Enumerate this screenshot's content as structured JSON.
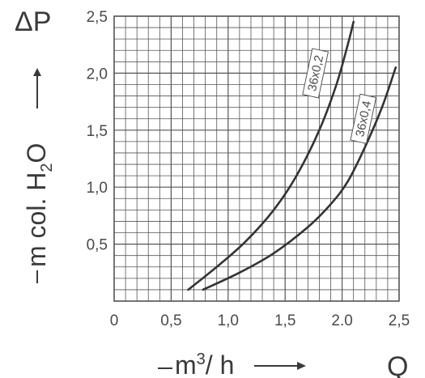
{
  "chart_data": {
    "type": "line",
    "y_symbol": "ΔP",
    "ylabel": {
      "prefix": "m col. H",
      "sub": "2",
      "suffix": "O"
    },
    "x_symbol": "Q",
    "xlabel": {
      "prefix": "m",
      "sup": "3",
      "suffix": "/ h"
    },
    "xlim": [
      0,
      2.5
    ],
    "ylim": [
      0,
      2.5
    ],
    "x_ticks": [
      "0",
      "0,5",
      "1,0",
      "1,5",
      "2.0",
      "2,5"
    ],
    "y_ticks": [
      "0,5",
      "1,0",
      "1,5",
      "2,0",
      "2,5"
    ],
    "grid": true,
    "series": [
      {
        "name": "36x0,2",
        "x": [
          0.65,
          0.9,
          1.15,
          1.4,
          1.6,
          1.8,
          1.95,
          2.05,
          2.1
        ],
        "y": [
          0.1,
          0.3,
          0.52,
          0.8,
          1.1,
          1.5,
          1.9,
          2.25,
          2.45
        ]
      },
      {
        "name": "36x0,4",
        "x": [
          0.78,
          1.1,
          1.4,
          1.7,
          1.9,
          2.05,
          2.2,
          2.35,
          2.47
        ],
        "y": [
          0.1,
          0.25,
          0.42,
          0.65,
          0.85,
          1.05,
          1.35,
          1.7,
          2.05
        ]
      }
    ],
    "colors": {
      "grid": "#555555",
      "curve": "#333333",
      "text": "#4a4a4a"
    }
  }
}
